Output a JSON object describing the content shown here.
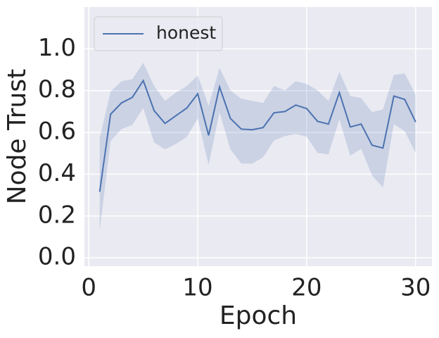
{
  "chart_data": {
    "type": "line",
    "xlabel": "Epoch",
    "ylabel": "Node Trust",
    "x": [
      1,
      2,
      3,
      4,
      5,
      6,
      7,
      8,
      9,
      10,
      11,
      12,
      13,
      14,
      15,
      16,
      17,
      18,
      19,
      20,
      21,
      22,
      23,
      24,
      25,
      26,
      27,
      28,
      29,
      30
    ],
    "series": [
      {
        "name": "honest",
        "color": "#4c72b0",
        "values": [
          0.316,
          0.687,
          0.741,
          0.768,
          0.848,
          0.704,
          0.643,
          0.68,
          0.717,
          0.785,
          0.586,
          0.818,
          0.667,
          0.616,
          0.613,
          0.623,
          0.694,
          0.7,
          0.731,
          0.714,
          0.653,
          0.64,
          0.791,
          0.626,
          0.64,
          0.539,
          0.525,
          0.774,
          0.758,
          0.65
        ],
        "upper": [
          0.572,
          0.795,
          0.845,
          0.855,
          0.933,
          0.822,
          0.751,
          0.791,
          0.822,
          0.872,
          0.727,
          0.909,
          0.801,
          0.761,
          0.751,
          0.741,
          0.822,
          0.801,
          0.845,
          0.832,
          0.801,
          0.751,
          0.889,
          0.774,
          0.764,
          0.697,
          0.71,
          0.875,
          0.882,
          0.781
        ],
        "lower": [
          0.128,
          0.559,
          0.616,
          0.636,
          0.717,
          0.552,
          0.519,
          0.545,
          0.579,
          0.667,
          0.444,
          0.697,
          0.519,
          0.451,
          0.451,
          0.481,
          0.562,
          0.582,
          0.593,
          0.579,
          0.502,
          0.495,
          0.663,
          0.488,
          0.522,
          0.394,
          0.337,
          0.64,
          0.606,
          0.502
        ]
      }
    ],
    "xlim": [
      -0.4,
      31.5
    ],
    "ylim": [
      -0.04,
      1.2
    ],
    "xticks": [
      0,
      10,
      20,
      30
    ],
    "yticks": [
      {
        "value": 0,
        "label": "0.0"
      },
      {
        "value": 0.2,
        "label": "0.2"
      },
      {
        "value": 0.4,
        "label": "0.4"
      },
      {
        "value": 0.6,
        "label": "0.6"
      },
      {
        "value": 0.8,
        "label": "0.8"
      },
      {
        "value": 1,
        "label": "1.0"
      }
    ],
    "grid": true,
    "legend": "upper left"
  }
}
